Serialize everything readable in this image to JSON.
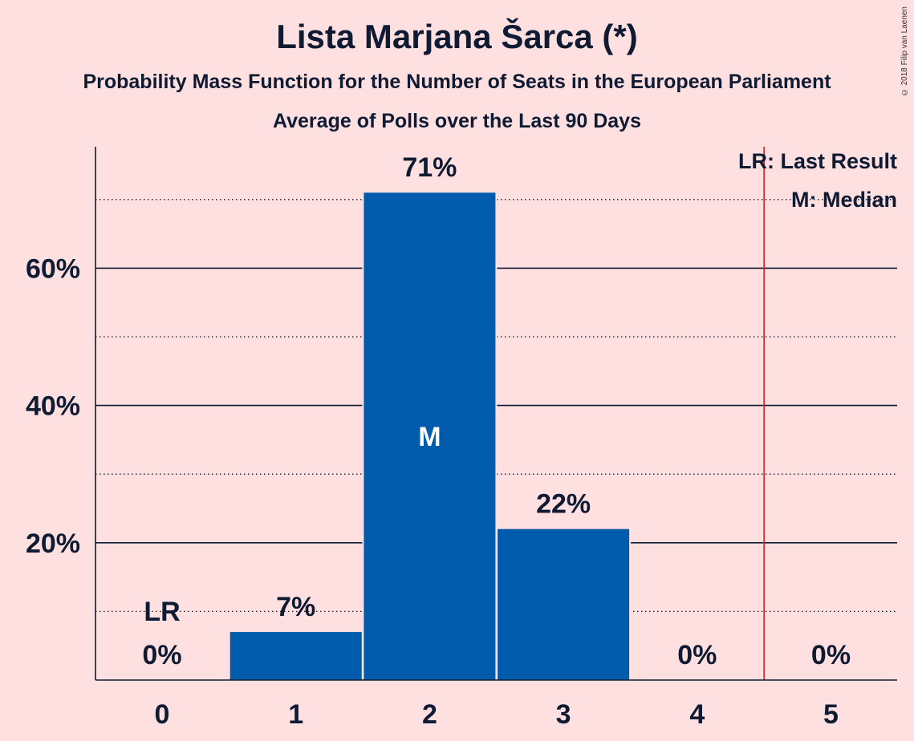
{
  "header": {
    "title": "Lista Marjana Šarca (*)",
    "subtitle": "Probability Mass Function for the Number of Seats in the European Parliament",
    "subtitle2": "Average of Polls over the Last 90 Days"
  },
  "copyright": "© 2018 Filip van Laenen",
  "legend": {
    "last_result": "LR: Last Result",
    "median": "M: Median"
  },
  "markers": {
    "last_result_label": "LR",
    "median_label": "M"
  },
  "colors": {
    "background": "#FFE0E0",
    "bar": "#005BAC",
    "last_result_line": "#D0202A",
    "text": "#0F1A33"
  },
  "chart_data": {
    "type": "bar",
    "title": "Lista Marjana Šarca (*)",
    "categories": [
      "0",
      "1",
      "2",
      "3",
      "4",
      "5"
    ],
    "values": [
      0,
      7,
      71,
      22,
      0,
      0
    ],
    "value_labels": [
      "0%",
      "7%",
      "71%",
      "22%",
      "0%",
      "0%"
    ],
    "y_ticks": [
      {
        "value": 20,
        "label": "20%"
      },
      {
        "value": 40,
        "label": "40%"
      },
      {
        "value": 60,
        "label": "60%"
      }
    ],
    "y_minor_ticks": [
      10,
      30,
      50,
      70
    ],
    "ylim": [
      0,
      78
    ],
    "median_category": "2",
    "last_result_category": "0",
    "last_result_line_at": 4.5,
    "legend_position": "top-right",
    "grid": true
  }
}
